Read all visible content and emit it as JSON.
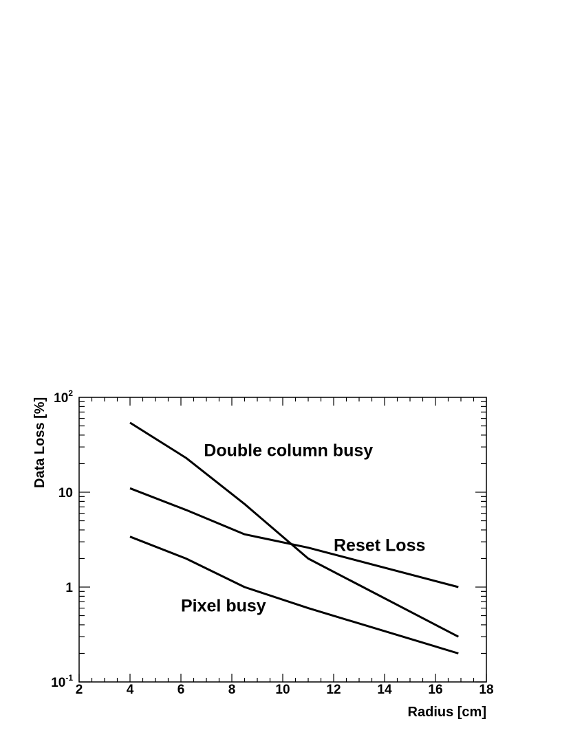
{
  "chart_data": {
    "type": "line",
    "xlabel": "Radius [cm]",
    "ylabel": "Data Loss [%]",
    "xlim": [
      2,
      18
    ],
    "ylim": [
      0.1,
      100
    ],
    "yscale": "log",
    "grid": false,
    "x_ticks": [
      "2",
      "4",
      "6",
      "8",
      "10",
      "12",
      "14",
      "16",
      "18"
    ],
    "y_ticks": [
      {
        "value": 0.1,
        "base": "10",
        "exp": "-1"
      },
      {
        "value": 1,
        "base": "1",
        "exp": ""
      },
      {
        "value": 10,
        "base": "10",
        "exp": ""
      },
      {
        "value": 100,
        "base": "10",
        "exp": "2"
      }
    ],
    "series": [
      {
        "x": [
          4.0,
          6.2,
          8.5,
          11.0,
          16.9
        ],
        "y": [
          54,
          23,
          7.5,
          2.0,
          0.3
        ]
      },
      {
        "x": [
          4.0,
          6.2,
          8.5,
          11.0,
          16.9
        ],
        "y": [
          11,
          6.5,
          3.6,
          2.6,
          1.0
        ]
      },
      {
        "x": [
          4.0,
          6.2,
          8.5,
          11.0,
          16.9
        ],
        "y": [
          3.4,
          2.0,
          1.0,
          0.6,
          0.2
        ]
      }
    ],
    "annotations": [
      {
        "text": "Double column busy",
        "x": 6.9,
        "y": 28
      },
      {
        "text": "Reset Loss",
        "x": 12.0,
        "y": 2.8
      },
      {
        "text": "Pixel busy",
        "x": 6.0,
        "y": 0.64
      }
    ]
  }
}
